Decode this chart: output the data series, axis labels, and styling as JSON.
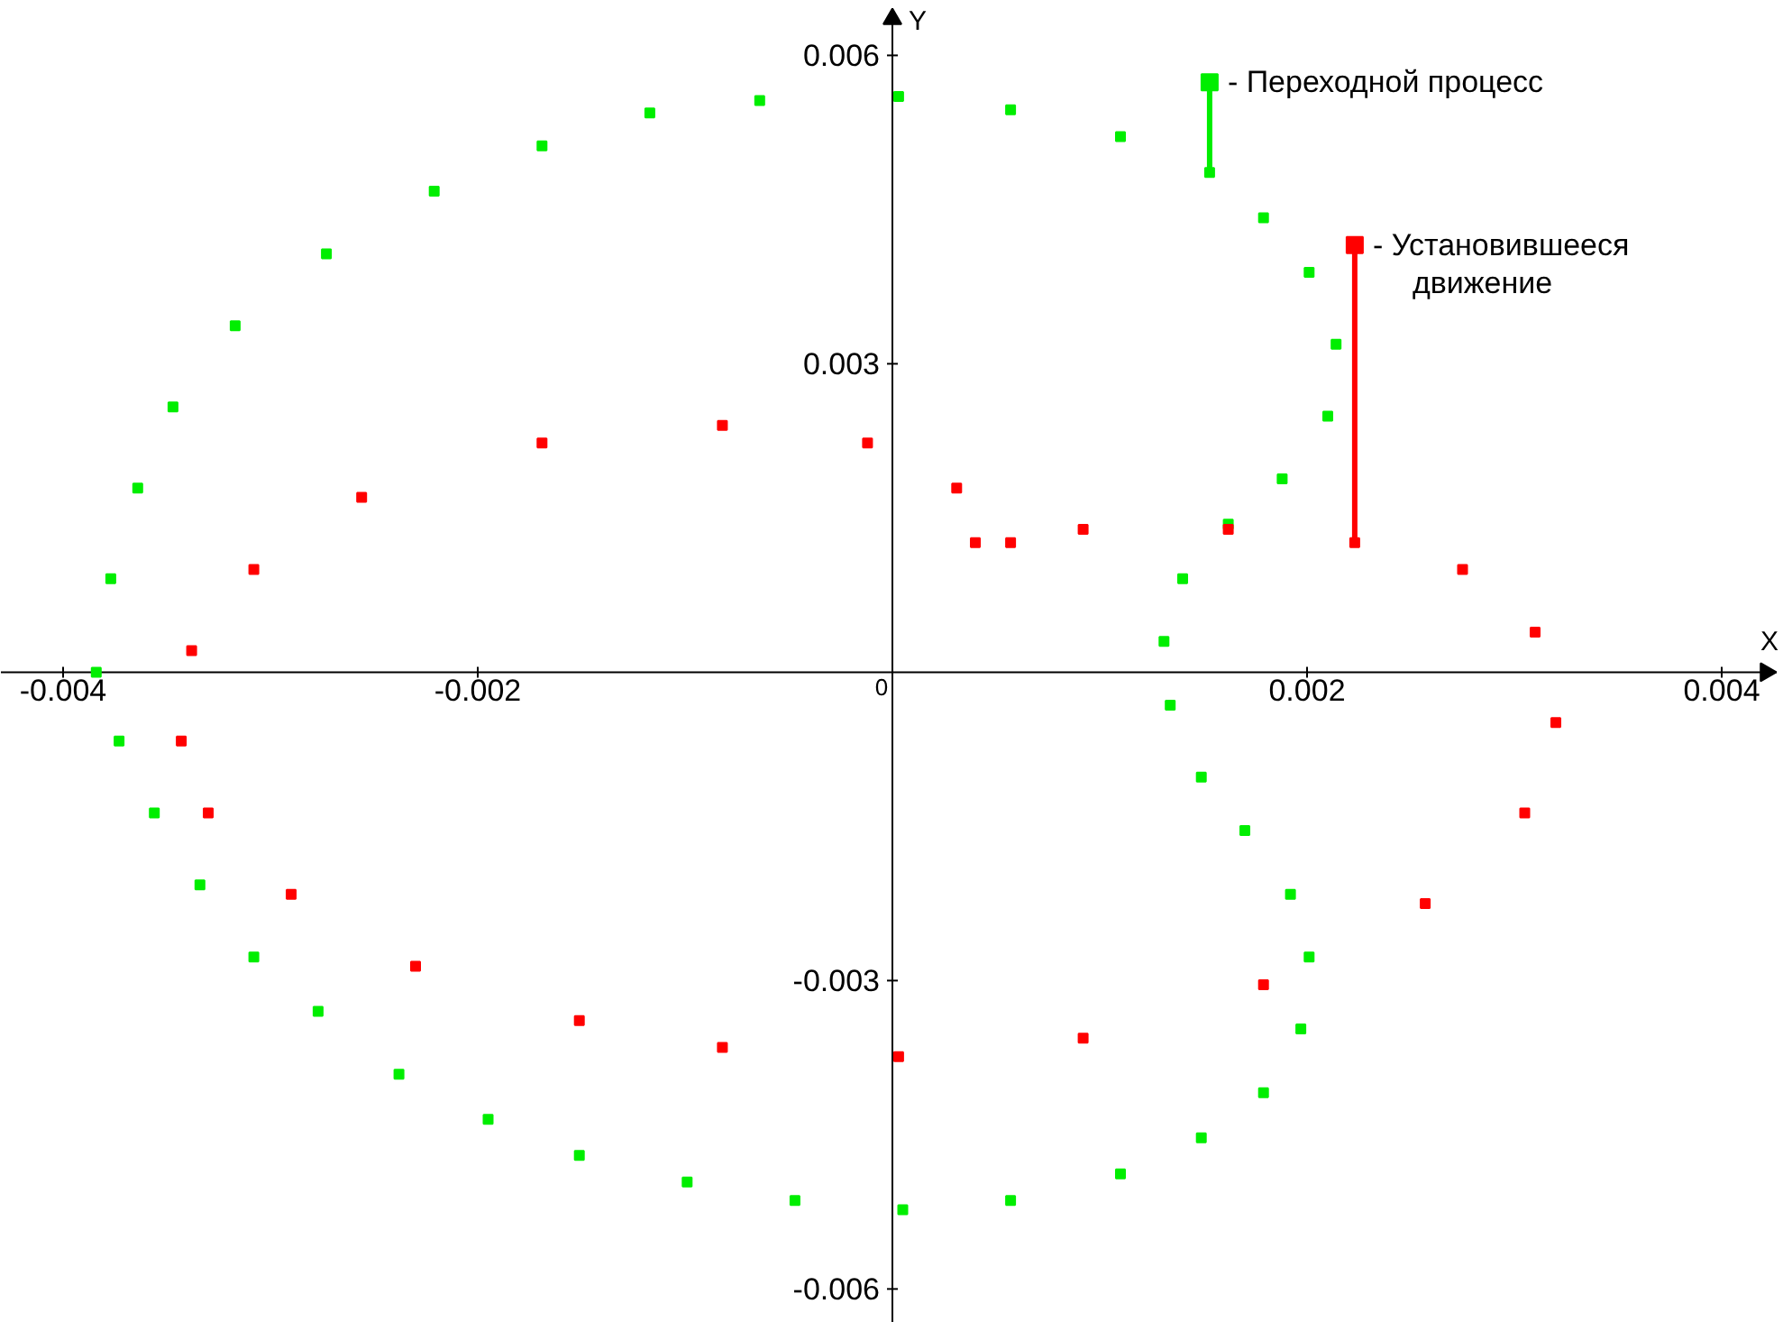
{
  "chart_data": {
    "type": "scatter",
    "xlabel": "X",
    "ylabel": "Y",
    "marker": "square",
    "grid": false,
    "legend": "top right",
    "xlim": [
      -0.0043,
      0.0043
    ],
    "ylim": [
      -0.00633,
      0.00653
    ],
    "xticks": [
      -0.004,
      -0.002,
      0,
      0.002,
      0.004
    ],
    "yticks": [
      -0.006,
      -0.003,
      0.003,
      0.006
    ],
    "series": [
      {
        "name": "- Переходной процесс",
        "color": "#00ee00",
        "x": [
          -0.00384,
          -0.00377,
          -0.00364,
          -0.00347,
          -0.00317,
          -0.00273,
          -0.00221,
          -0.00169,
          -0.00117,
          -0.00064,
          3e-05,
          0.00057,
          0.0011,
          0.00153,
          0.00179,
          0.00201,
          0.00214,
          0.0021,
          0.00188,
          0.00162,
          0.0014,
          0.00131,
          0.00134,
          0.00149,
          0.0017,
          0.00192,
          0.00201,
          0.00197,
          0.00179,
          0.00149,
          0.0011,
          0.00057,
          5e-05,
          -0.00047,
          -0.00099,
          -0.00151,
          -0.00195,
          -0.00238,
          -0.00277,
          -0.00308,
          -0.00334,
          -0.00356,
          -0.00373
        ],
        "values": [
          0,
          0.00091,
          0.00179,
          0.00258,
          0.00337,
          0.00407,
          0.00468,
          0.00512,
          0.00544,
          0.00556,
          0.0056,
          0.00547,
          0.00521,
          0.00486,
          0.00442,
          0.00389,
          0.00319,
          0.00249,
          0.00188,
          0.00144,
          0.00091,
          0.0003,
          -0.00032,
          -0.00102,
          -0.00154,
          -0.00216,
          -0.00277,
          -0.00347,
          -0.00409,
          -0.00453,
          -0.00488,
          -0.00514,
          -0.00523,
          -0.00514,
          -0.00496,
          -0.0047,
          -0.00435,
          -0.00391,
          -0.0033,
          -0.00277,
          -0.00207,
          -0.00137,
          -0.00067
        ]
      },
      {
        "name": "- Установившееся движение",
        "color": "#ff0000",
        "x": [
          0.0004,
          0.00031,
          -0.00012,
          -0.00082,
          -0.00169,
          -0.00256,
          -0.00308,
          -0.00338,
          -0.00343,
          -0.0033,
          -0.0029,
          -0.0023,
          -0.00151,
          -0.00082,
          3e-05,
          0.00092,
          0.00179,
          0.00257,
          0.00305,
          0.0032,
          0.0031,
          0.00275,
          0.00223,
          0.00162,
          0.00092,
          0.00057
        ],
        "values": [
          0.00126,
          0.00179,
          0.00223,
          0.0024,
          0.00223,
          0.0017,
          0.001,
          0.00021,
          -0.00067,
          -0.00137,
          -0.00216,
          -0.00286,
          -0.00339,
          -0.00365,
          -0.00374,
          -0.00356,
          -0.00304,
          -0.00225,
          -0.00137,
          -0.00049,
          0.00039,
          0.001,
          0.00126,
          0.00139,
          0.00139,
          0.00126
        ]
      }
    ]
  }
}
